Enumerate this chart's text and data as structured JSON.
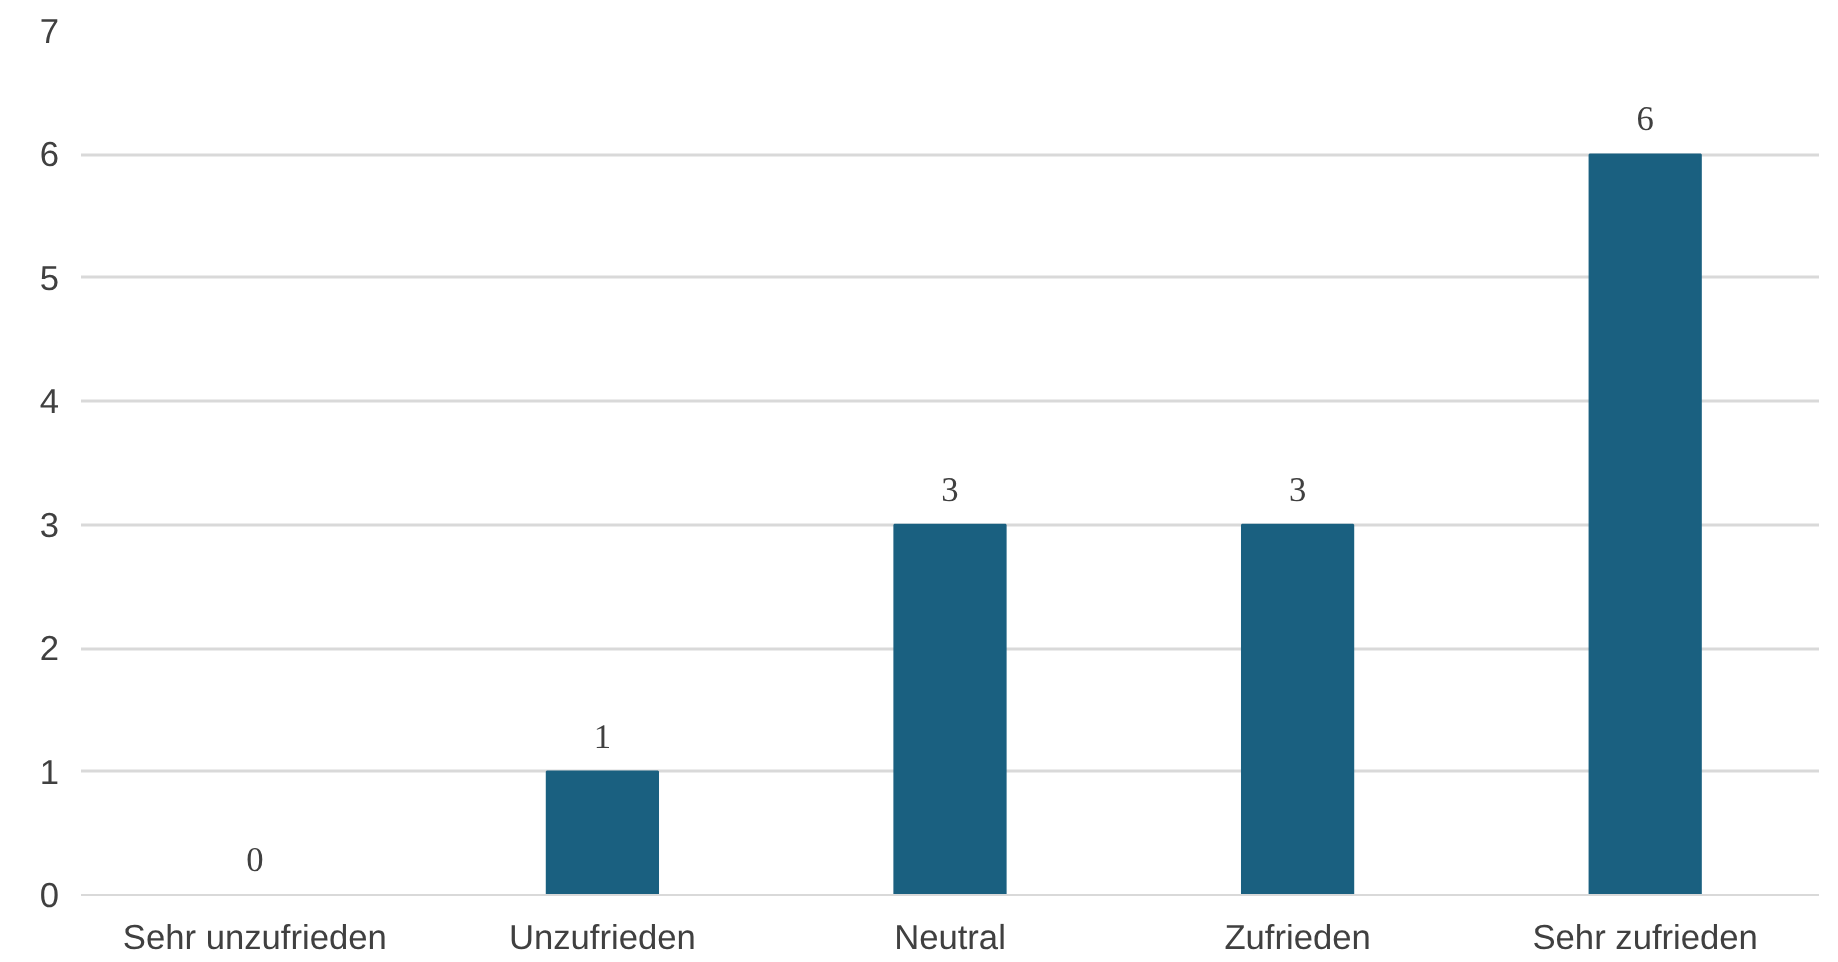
{
  "chart_data": {
    "type": "bar",
    "categories": [
      "Sehr unzufrieden",
      "Unzufrieden",
      "Neutral",
      "Zufrieden",
      "Sehr zufrieden"
    ],
    "values": [
      0,
      1,
      3,
      3,
      6
    ],
    "color": "#1a6080",
    "ylim": [
      0,
      7
    ],
    "yticks": [
      0,
      1,
      2,
      3,
      4,
      5,
      6,
      7
    ],
    "grid": "y",
    "data_labels": true
  }
}
